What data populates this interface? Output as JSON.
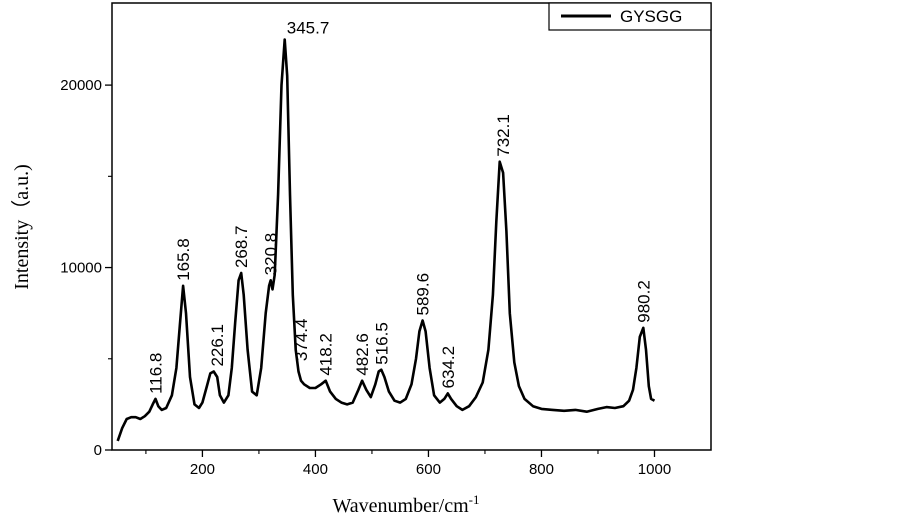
{
  "chart_data": {
    "type": "line",
    "title": "",
    "xlabel": "Wavenumber/cm",
    "xlabel_superscript": "-1",
    "ylabel": "Intensity（a.u.)",
    "xlim": [
      40,
      1100
    ],
    "ylim": [
      0,
      24500
    ],
    "x_ticks": [
      200,
      400,
      600,
      800,
      1000
    ],
    "y_ticks": [
      0,
      10000,
      20000
    ],
    "grid": false,
    "legend": {
      "position": "top-right",
      "entries": [
        "GYSGG"
      ]
    },
    "series": [
      {
        "name": "GYSGG",
        "color": "#000000",
        "x": [
          50,
          58,
          66,
          74,
          82,
          90,
          98,
          106,
          112,
          117,
          122,
          128,
          136,
          146,
          154,
          160,
          165.8,
          171,
          178,
          186,
          194,
          200,
          208,
          214,
          220,
          226.1,
          231,
          238,
          246,
          252,
          258,
          264,
          268.7,
          273,
          280,
          288,
          296,
          304,
          312,
          318,
          320.8,
          324,
          328,
          334,
          340,
          345.7,
          350,
          355,
          360,
          365,
          370,
          374.4,
          380,
          390,
          400,
          410,
          418.2,
          426,
          436,
          446,
          456,
          466,
          476,
          482.6,
          490,
          498,
          506,
          512,
          516.5,
          522,
          530,
          540,
          550,
          560,
          570,
          578,
          584,
          589.6,
          595,
          602,
          610,
          620,
          628,
          634.2,
          640,
          650,
          660,
          672,
          684,
          696,
          706,
          714,
          720,
          726,
          732.1,
          738,
          744,
          752,
          760,
          770,
          785,
          800,
          820,
          840,
          860,
          880,
          900,
          915,
          930,
          945,
          955,
          962,
          968,
          974,
          980.2,
          985,
          990,
          994,
          1000
        ],
        "y": [
          500,
          1200,
          1700,
          1800,
          1800,
          1700,
          1850,
          2100,
          2500,
          2800,
          2400,
          2200,
          2300,
          3000,
          4500,
          6800,
          9000,
          7500,
          4000,
          2500,
          2300,
          2600,
          3500,
          4200,
          4300,
          4000,
          3000,
          2600,
          3000,
          4500,
          7000,
          9300,
          9700,
          8500,
          5500,
          3200,
          3000,
          4500,
          7500,
          9000,
          9300,
          8800,
          9600,
          14000,
          20000,
          22500,
          20500,
          14000,
          8500,
          5500,
          4300,
          3800,
          3600,
          3400,
          3400,
          3600,
          3800,
          3200,
          2800,
          2600,
          2500,
          2600,
          3300,
          3800,
          3300,
          2900,
          3600,
          4300,
          4400,
          4000,
          3200,
          2700,
          2600,
          2800,
          3600,
          5000,
          6500,
          7100,
          6500,
          4500,
          3000,
          2600,
          2800,
          3100,
          2800,
          2400,
          2200,
          2400,
          2900,
          3700,
          5500,
          8500,
          12500,
          15800,
          15200,
          12000,
          7500,
          4800,
          3500,
          2800,
          2400,
          2250,
          2200,
          2150,
          2200,
          2100,
          2250,
          2350,
          2300,
          2400,
          2700,
          3300,
          4500,
          6200,
          6700,
          5500,
          3500,
          2800,
          2700
        ]
      }
    ],
    "annotations": [
      {
        "label": "116.8",
        "x": 116.8,
        "y": 2800
      },
      {
        "label": "165.8",
        "x": 165.8,
        "y": 9000
      },
      {
        "label": "226.1",
        "x": 226.1,
        "y": 4300
      },
      {
        "label": "268.7",
        "x": 268.7,
        "y": 9700
      },
      {
        "label": "320.8",
        "x": 320.8,
        "y": 9300
      },
      {
        "label": "345.7",
        "x": 345.7,
        "y": 22500
      },
      {
        "label": "374.4",
        "x": 374.4,
        "y": 4600
      },
      {
        "label": "418.2",
        "x": 418.2,
        "y": 3800
      },
      {
        "label": "482.6",
        "x": 482.6,
        "y": 3800
      },
      {
        "label": "516.5",
        "x": 516.5,
        "y": 4400
      },
      {
        "label": "589.6",
        "x": 589.6,
        "y": 7100
      },
      {
        "label": "634.2",
        "x": 634.2,
        "y": 3100
      },
      {
        "label": "732.1",
        "x": 732.1,
        "y": 15800
      },
      {
        "label": "980.2",
        "x": 980.2,
        "y": 6700
      }
    ]
  }
}
